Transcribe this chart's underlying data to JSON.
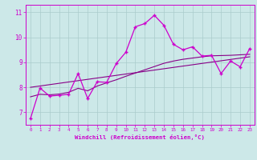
{
  "xlabel": "Windchill (Refroidissement éolien,°C)",
  "bg_color": "#cce8e8",
  "grid_color": "#aacccc",
  "line_color": "#cc00cc",
  "line2_color": "#880088",
  "xlim": [
    -0.5,
    23.5
  ],
  "ylim": [
    6.5,
    11.3
  ],
  "xtick_labels": [
    "0",
    "1",
    "2",
    "3",
    "4",
    "5",
    "6",
    "7",
    "8",
    "9",
    "10",
    "11",
    "12",
    "13",
    "14",
    "15",
    "16",
    "17",
    "18",
    "19",
    "20",
    "21",
    "22",
    "23"
  ],
  "ytick_values": [
    7,
    8,
    9,
    10,
    11
  ],
  "series1_x": [
    0,
    1,
    2,
    3,
    4,
    5,
    6,
    7,
    8,
    9,
    10,
    11,
    12,
    13,
    14,
    15,
    16,
    17,
    18,
    19,
    20,
    21,
    22,
    23
  ],
  "series1_y": [
    6.75,
    7.97,
    7.65,
    7.68,
    7.72,
    8.55,
    7.55,
    8.22,
    8.2,
    8.95,
    9.4,
    10.42,
    10.55,
    10.88,
    10.48,
    9.72,
    9.5,
    9.62,
    9.25,
    9.28,
    8.55,
    9.05,
    8.82,
    9.55
  ],
  "series2_x": [
    0,
    1,
    2,
    3,
    4,
    5,
    6,
    7,
    8,
    9,
    10,
    11,
    12,
    13,
    14,
    15,
    16,
    17,
    18,
    19,
    20,
    21,
    22,
    23
  ],
  "series2_y": [
    7.62,
    7.72,
    7.7,
    7.73,
    7.8,
    7.96,
    7.86,
    8.05,
    8.18,
    8.3,
    8.44,
    8.57,
    8.7,
    8.83,
    8.96,
    9.05,
    9.12,
    9.17,
    9.22,
    9.26,
    9.27,
    9.28,
    9.3,
    9.32
  ],
  "series3_x": [
    0,
    23
  ],
  "series3_y": [
    8.0,
    9.22
  ]
}
